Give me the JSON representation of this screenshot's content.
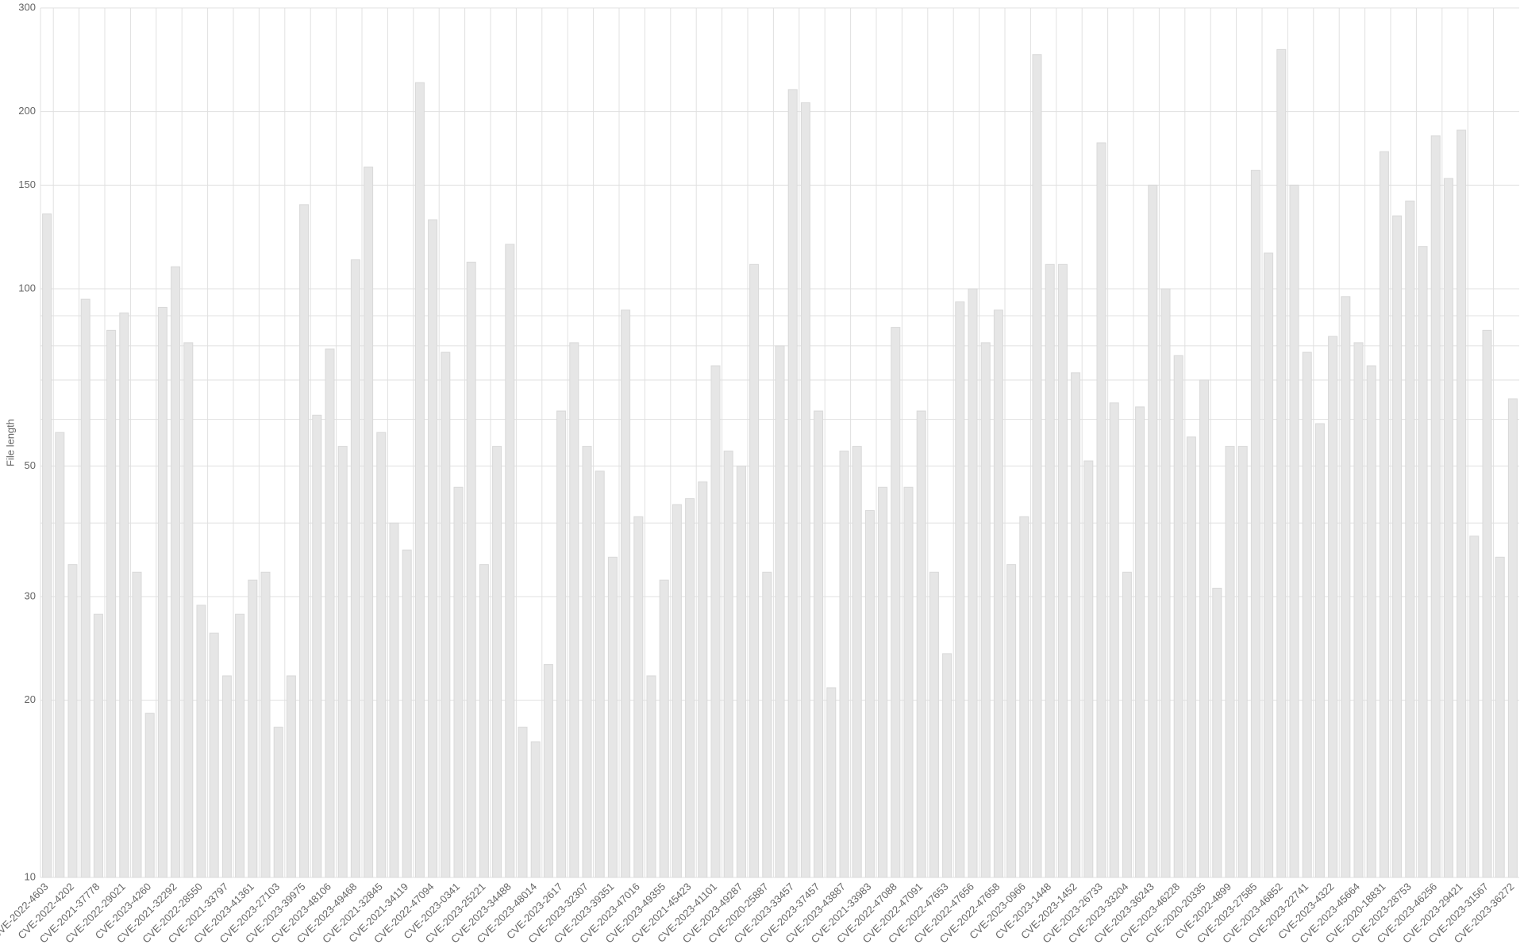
{
  "chart_data": {
    "type": "bar",
    "y_label": "File length",
    "categories": [
      "CVE-2022-4603",
      null,
      "CVE-2022-4202",
      null,
      "CVE-2021-37778",
      null,
      "CVE-2022-29021",
      null,
      "CVE-2023-4260",
      null,
      "CVE-2021-32292",
      null,
      "CVE-2022-28550",
      null,
      "CVE-2021-33797",
      null,
      "CVE-2023-41361",
      null,
      "CVE-2023-27103",
      null,
      "CVE-2023-39975",
      null,
      "CVE-2023-48106",
      null,
      "CVE-2023-49468",
      null,
      "CVE-2021-32845",
      null,
      "CVE-2021-34119",
      null,
      "CVE-2022-47094",
      null,
      "CVE-2023-0341",
      null,
      "CVE-2023-25221",
      null,
      "CVE-2023-34488",
      null,
      "CVE-2023-48014",
      null,
      "CVE-2023-2617",
      null,
      "CVE-2023-32307",
      null,
      "CVE-2023-39351",
      null,
      "CVE-2023-47016",
      null,
      "CVE-2023-49355",
      null,
      "CVE-2021-45423",
      null,
      "CVE-2023-41101",
      null,
      "CVE-2023-49287",
      null,
      "CVE-2020-25887",
      null,
      "CVE-2023-33457",
      null,
      "CVE-2023-37457",
      null,
      "CVE-2023-43887",
      null,
      "CVE-2021-33983",
      null,
      "CVE-2022-47088",
      null,
      "CVE-2022-47091",
      null,
      "CVE-2022-47653",
      null,
      "CVE-2022-47656",
      null,
      "CVE-2022-47658",
      null,
      "CVE-2023-0966",
      null,
      "CVE-2023-1448",
      null,
      "CVE-2023-1452",
      null,
      "CVE-2023-26733",
      null,
      "CVE-2023-33204",
      null,
      "CVE-2023-36243",
      null,
      "CVE-2023-46228",
      null,
      "CVE-2020-20335",
      null,
      "CVE-2022-4899",
      null,
      "CVE-2023-27585",
      null,
      "CVE-2023-46852",
      null,
      "CVE-2023-22741",
      null,
      "CVE-2023-4322",
      null,
      "CVE-2023-45664",
      null,
      "CVE-2020-18831",
      null,
      "CVE-2023-28753",
      null,
      "CVE-2023-46256",
      null,
      "CVE-2023-29421",
      null,
      "CVE-2023-31567",
      null,
      "CVE-2023-36272"
    ],
    "values": [
      134,
      57,
      34,
      96,
      28,
      85,
      91,
      33,
      19,
      93,
      109,
      81,
      29,
      26,
      22,
      28,
      32,
      33,
      18,
      22,
      139,
      61,
      79,
      54,
      112,
      161,
      57,
      40,
      36,
      224,
      131,
      78,
      46,
      111,
      34,
      54,
      119,
      18,
      17,
      23,
      62,
      81,
      54,
      49,
      35,
      92,
      41,
      22,
      32,
      43,
      44,
      47,
      74,
      53,
      50,
      110,
      33,
      80,
      218,
      207,
      62,
      21,
      53,
      54,
      42,
      46,
      86,
      46,
      62,
      33,
      24,
      95,
      100,
      81,
      92,
      34,
      41,
      250,
      110,
      110,
      72,
      51,
      177,
      64,
      33,
      63,
      150,
      100,
      77,
      56,
      70,
      31,
      54,
      54,
      159,
      115,
      255,
      150,
      78,
      59,
      83,
      97,
      81,
      74,
      171,
      133,
      141,
      118,
      182,
      154,
      186,
      38,
      85,
      35,
      65
    ],
    "color": "#e6e6e6",
    "yscale": "log",
    "ylim": [
      10,
      300
    ],
    "yticks": [
      10,
      20,
      30,
      50,
      100,
      150,
      200,
      300
    ],
    "yminor": [
      40,
      60,
      70,
      80,
      90
    ],
    "grid": true
  }
}
